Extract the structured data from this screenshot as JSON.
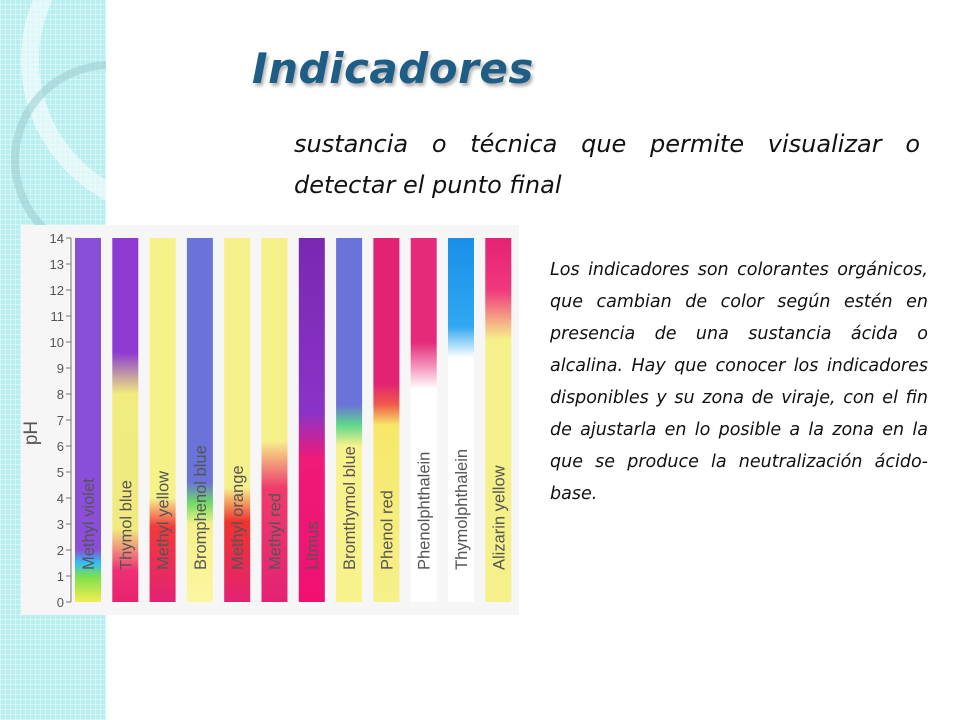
{
  "slide": {
    "title": "Indicadores",
    "subtitle": "sustancia o técnica que permite visualizar o detectar el punto final",
    "body": "Los indicadores son colorantes orgánicos, que cambian de color según estén en presencia de una sustancia ácida o alcalina. Hay que conocer los indicadores disponibles y su zona de viraje, con el fin de ajustarla en lo posible a la zona en la que se produce la neutralización ácido-base."
  },
  "colors": {
    "title": "#1e5d86",
    "side_band": "#b9eef0",
    "frame": "#f6f6f6"
  },
  "chart_data": {
    "type": "bar",
    "ylabel": "pH",
    "ylim": [
      0,
      14
    ],
    "yticks": [
      "0",
      "1",
      "2",
      "3",
      "4",
      "5",
      "6",
      "7",
      "8",
      "9",
      "10",
      "11",
      "12",
      "13",
      "14"
    ],
    "series": [
      {
        "name": "Methyl violet",
        "stops": [
          [
            0,
            "#f2ee50"
          ],
          [
            1,
            "#7ae04c"
          ],
          [
            1.5,
            "#2fc0f6"
          ],
          [
            2,
            "#8a4fd8"
          ],
          [
            14,
            "#8a4fd8"
          ]
        ]
      },
      {
        "name": "Thymol blue",
        "stops": [
          [
            0,
            "#e8226d"
          ],
          [
            1.2,
            "#ef2f76"
          ],
          [
            2.8,
            "#f0ea80"
          ],
          [
            8,
            "#f1ec7d"
          ],
          [
            9.6,
            "#8e3ad0"
          ],
          [
            14,
            "#8e3ad0"
          ]
        ]
      },
      {
        "name": "Methyl yellow",
        "stops": [
          [
            0,
            "#e42274"
          ],
          [
            2.9,
            "#f33a3a"
          ],
          [
            4,
            "#f5f28a"
          ],
          [
            14,
            "#f5f28a"
          ]
        ]
      },
      {
        "name": "Bromphenol blue",
        "stops": [
          [
            0,
            "#fbf6a2"
          ],
          [
            3,
            "#f6f08a"
          ],
          [
            3.8,
            "#6fdc66"
          ],
          [
            4.6,
            "#6a73d8"
          ],
          [
            14,
            "#6a73d8"
          ]
        ]
      },
      {
        "name": "Methyl orange",
        "stops": [
          [
            0,
            "#e42274"
          ],
          [
            3.1,
            "#f0342d"
          ],
          [
            4.4,
            "#f6f08a"
          ],
          [
            14,
            "#f6f08a"
          ]
        ]
      },
      {
        "name": "Methyl red",
        "stops": [
          [
            0,
            "#e42274"
          ],
          [
            4.4,
            "#ef3c6c"
          ],
          [
            6.2,
            "#f6f08a"
          ],
          [
            14,
            "#f6f08a"
          ]
        ]
      },
      {
        "name": "Litmus",
        "stops": [
          [
            0,
            "#f01070"
          ],
          [
            5.5,
            "#f01a78"
          ],
          [
            7.3,
            "#8a33c8"
          ],
          [
            14,
            "#7a28b0"
          ]
        ]
      },
      {
        "name": "Bromthymol blue",
        "stops": [
          [
            0,
            "#f8f28c"
          ],
          [
            6,
            "#f8f28c"
          ],
          [
            6.8,
            "#5fd88a"
          ],
          [
            7.6,
            "#6a73d8"
          ],
          [
            14,
            "#6a73d8"
          ]
        ]
      },
      {
        "name": "Phenol red",
        "stops": [
          [
            0,
            "#f6f08a"
          ],
          [
            6.8,
            "#f7e86a"
          ],
          [
            7.6,
            "#f05a4a"
          ],
          [
            8.4,
            "#e42274"
          ],
          [
            14,
            "#e42274"
          ]
        ]
      },
      {
        "name": "Phenolphthalein",
        "stops": [
          [
            0,
            "#ffffff"
          ],
          [
            8.2,
            "#ffffff"
          ],
          [
            9,
            "#f59abf"
          ],
          [
            10,
            "#e42a79"
          ],
          [
            14,
            "#e42a79"
          ]
        ]
      },
      {
        "name": "Thymolphthalein",
        "stops": [
          [
            0,
            "#ffffff"
          ],
          [
            9.4,
            "#ffffff"
          ],
          [
            10.6,
            "#30a8f0"
          ],
          [
            14,
            "#1a8fe8"
          ]
        ]
      },
      {
        "name": "Alizarin yellow",
        "stops": [
          [
            0,
            "#f6f08a"
          ],
          [
            10.1,
            "#f6f08a"
          ],
          [
            12,
            "#f0387d"
          ],
          [
            14,
            "#e42274"
          ]
        ]
      }
    ]
  }
}
